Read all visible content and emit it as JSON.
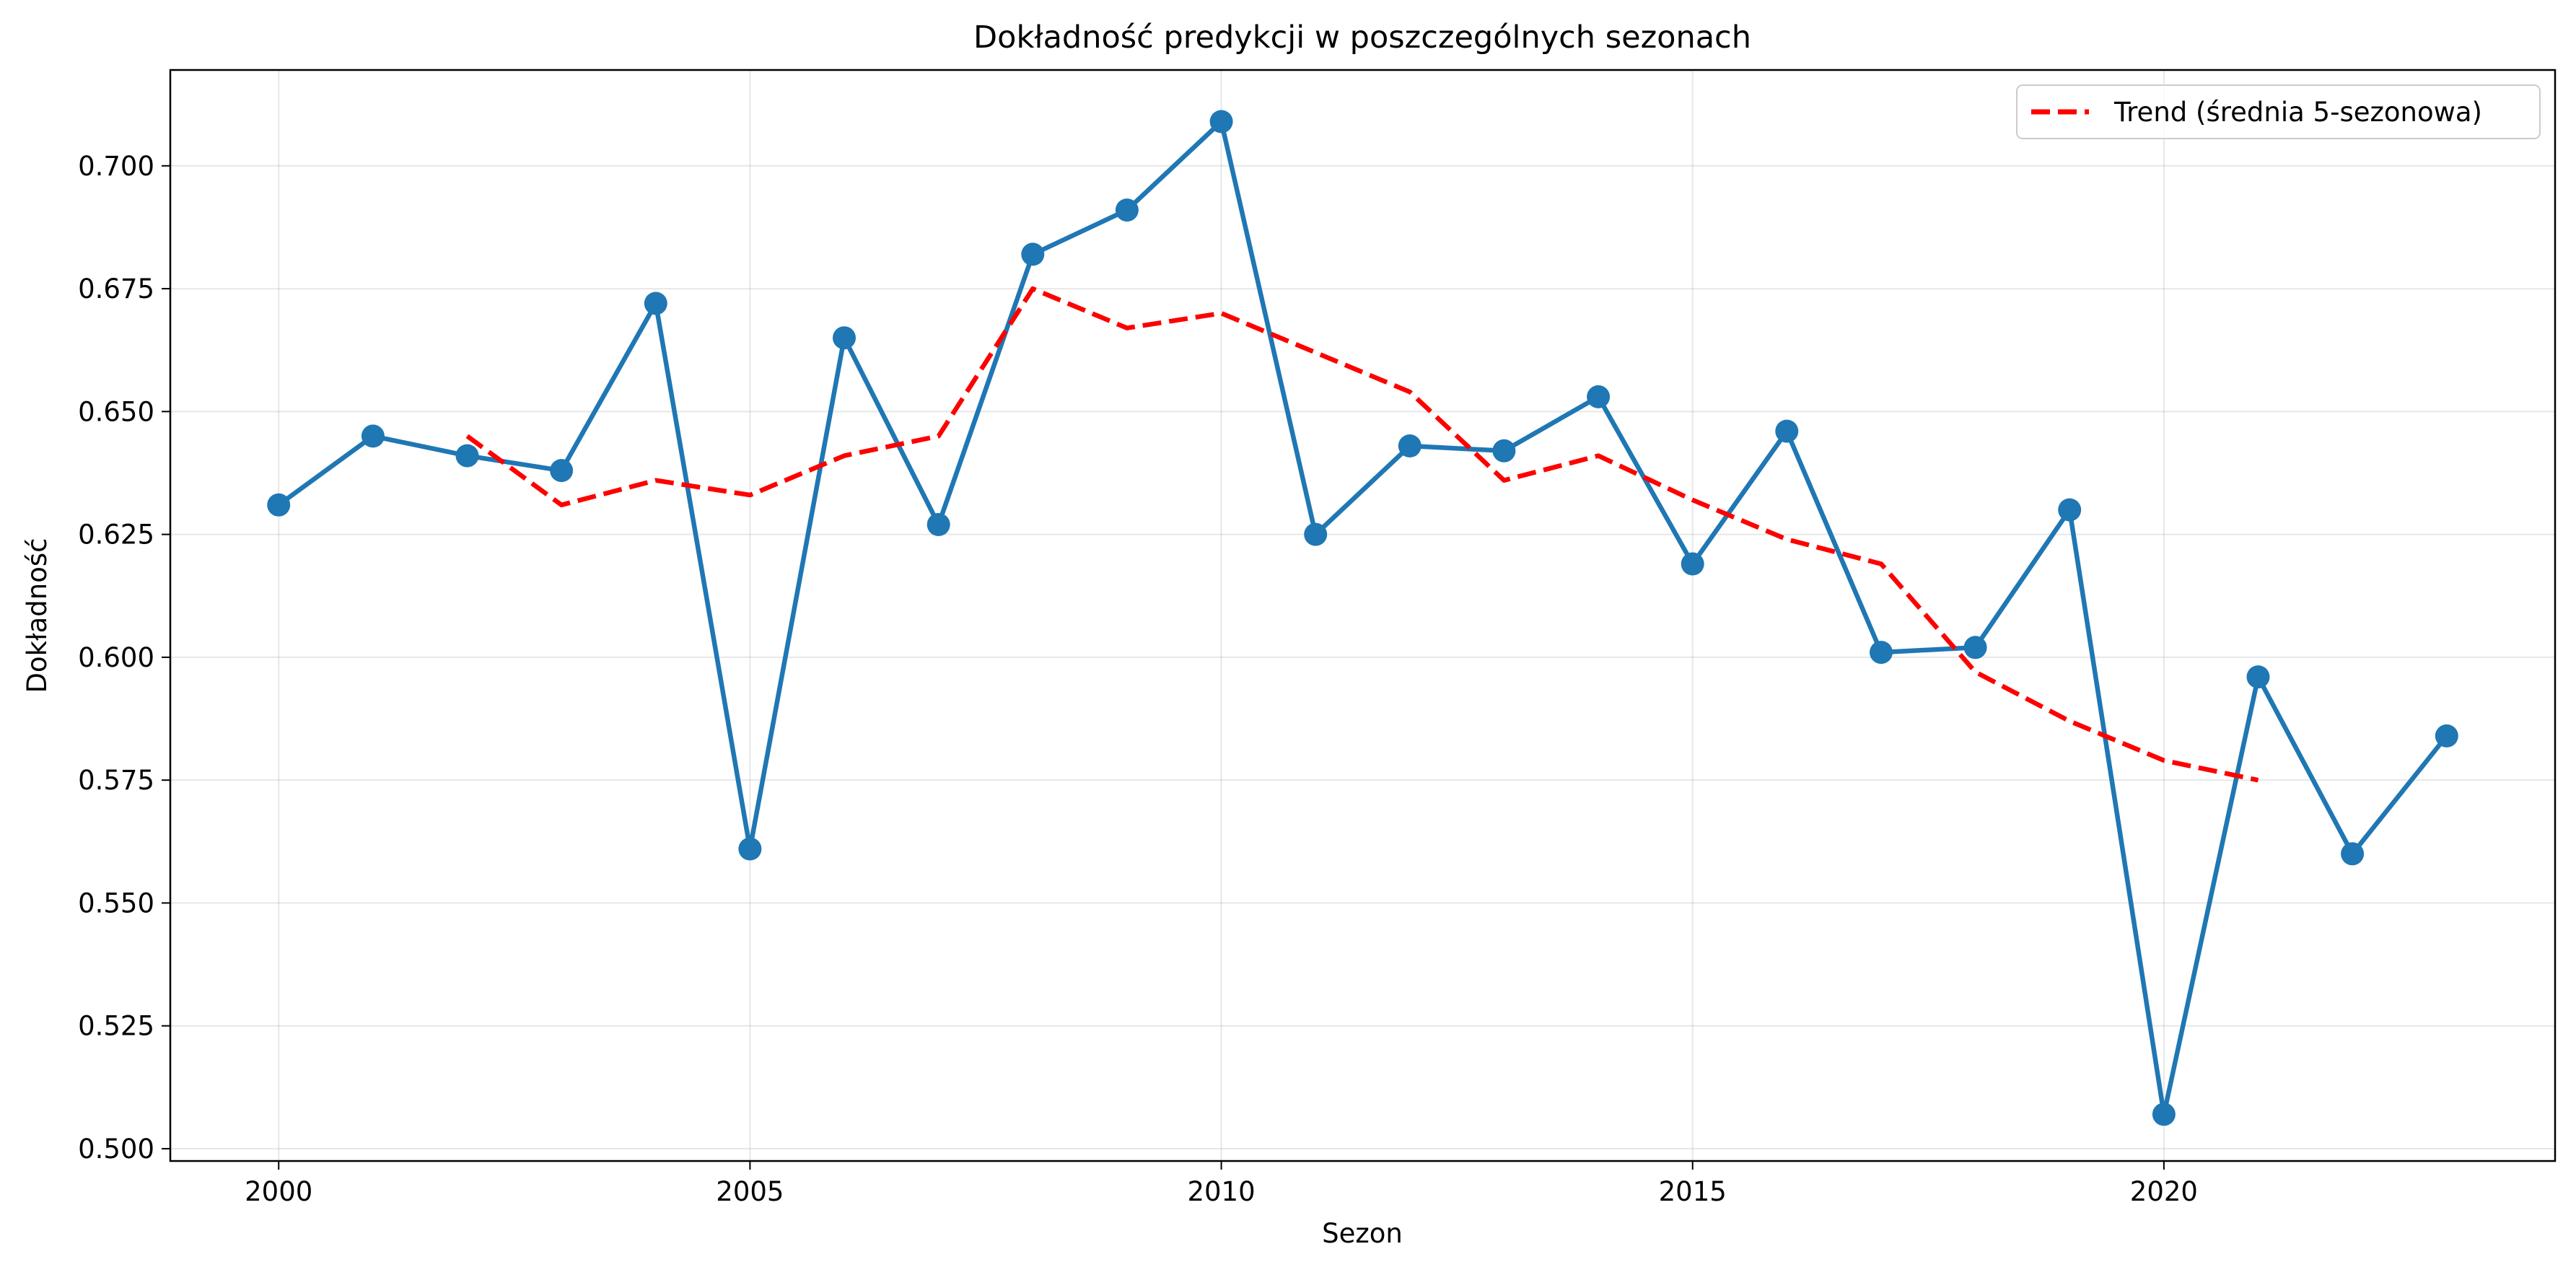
{
  "chart_data": {
    "type": "line",
    "title": "Dokładność predykcji w poszczególnych sezonach",
    "xlabel": "Sezon",
    "ylabel": "Dokładność",
    "xlim": [
      1998.85,
      2024.15
    ],
    "ylim": [
      0.4975,
      0.7195
    ],
    "x_ticks": [
      2000,
      2005,
      2010,
      2015,
      2020
    ],
    "y_ticks": [
      0.5,
      0.525,
      0.55,
      0.575,
      0.6,
      0.625,
      0.65,
      0.675,
      0.7
    ],
    "x_tick_labels": [
      "2000",
      "2005",
      "2010",
      "2015",
      "2020"
    ],
    "y_tick_labels": [
      "0.500",
      "0.525",
      "0.550",
      "0.575",
      "0.600",
      "0.625",
      "0.650",
      "0.675",
      "0.700"
    ],
    "grid": true,
    "legend_position": "top-right",
    "series": [
      {
        "key": "accuracy",
        "color": "#1f77b4",
        "style": "solid-with-markers",
        "x": [
          2000,
          2001,
          2002,
          2003,
          2004,
          2005,
          2006,
          2007,
          2008,
          2009,
          2010,
          2011,
          2012,
          2013,
          2014,
          2015,
          2016,
          2017,
          2018,
          2019,
          2020,
          2021,
          2022,
          2023
        ],
        "y": [
          0.631,
          0.645,
          0.641,
          0.638,
          0.672,
          0.561,
          0.665,
          0.627,
          0.682,
          0.691,
          0.709,
          0.625,
          0.643,
          0.642,
          0.653,
          0.619,
          0.646,
          0.601,
          0.602,
          0.63,
          0.507,
          0.596,
          0.56,
          0.584
        ]
      },
      {
        "key": "trend",
        "name": "Trend (średnia 5-sezonowa)",
        "color": "#ff0000",
        "style": "dashed",
        "x": [
          2002,
          2003,
          2004,
          2005,
          2006,
          2007,
          2008,
          2009,
          2010,
          2011,
          2012,
          2013,
          2014,
          2015,
          2016,
          2017,
          2018,
          2019,
          2020,
          2021
        ],
        "y": [
          0.645,
          0.631,
          0.636,
          0.633,
          0.641,
          0.645,
          0.675,
          0.667,
          0.67,
          0.662,
          0.654,
          0.636,
          0.641,
          0.632,
          0.624,
          0.619,
          0.597,
          0.587,
          0.579,
          0.575
        ]
      }
    ],
    "legend": {
      "entries": [
        "Trend (średnia 5-sezonowa)"
      ]
    }
  }
}
